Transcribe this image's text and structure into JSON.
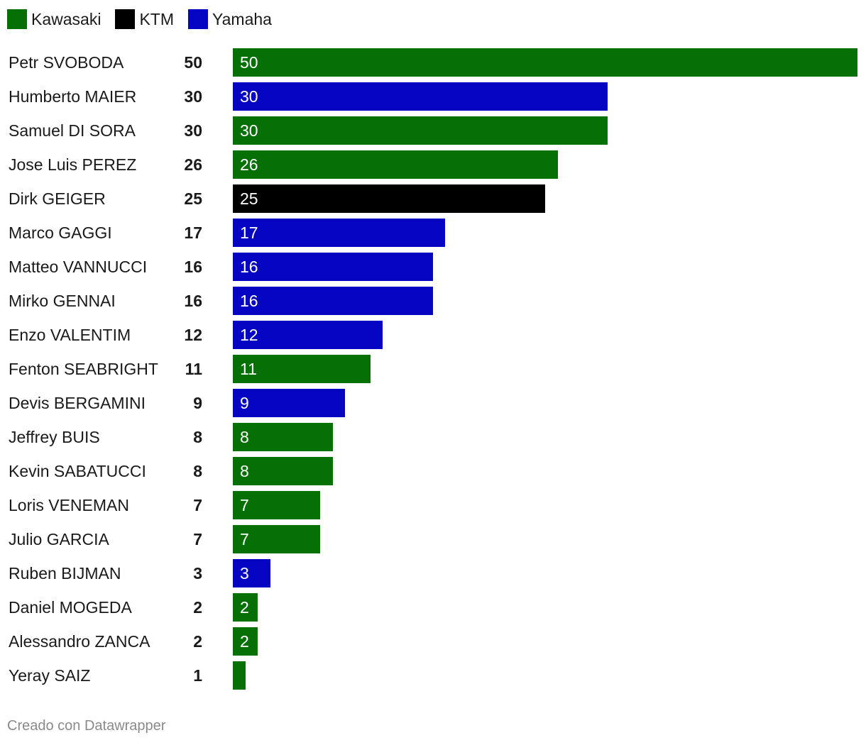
{
  "chart_data": {
    "type": "bar",
    "orientation": "horizontal",
    "legend": [
      {
        "name": "Kawasaki",
        "color": "#067006"
      },
      {
        "name": "KTM",
        "color": "#000000"
      },
      {
        "name": "Yamaha",
        "color": "#0505c3"
      }
    ],
    "xlim": [
      0,
      50
    ],
    "rows": [
      {
        "name": "Petr SVOBODA",
        "value": 50,
        "brand": "Kawasaki",
        "show_label": true
      },
      {
        "name": "Humberto MAIER",
        "value": 30,
        "brand": "Yamaha",
        "show_label": true
      },
      {
        "name": "Samuel DI SORA",
        "value": 30,
        "brand": "Kawasaki",
        "show_label": true
      },
      {
        "name": "Jose Luis PEREZ",
        "value": 26,
        "brand": "Kawasaki",
        "show_label": true
      },
      {
        "name": "Dirk GEIGER",
        "value": 25,
        "brand": "KTM",
        "show_label": true
      },
      {
        "name": "Marco GAGGI",
        "value": 17,
        "brand": "Yamaha",
        "show_label": true
      },
      {
        "name": "Matteo VANNUCCI",
        "value": 16,
        "brand": "Yamaha",
        "show_label": true
      },
      {
        "name": "Mirko GENNAI",
        "value": 16,
        "brand": "Yamaha",
        "show_label": true
      },
      {
        "name": "Enzo VALENTIM",
        "value": 12,
        "brand": "Yamaha",
        "show_label": true
      },
      {
        "name": "Fenton SEABRIGHT",
        "value": 11,
        "brand": "Kawasaki",
        "show_label": true
      },
      {
        "name": "Devis BERGAMINI",
        "value": 9,
        "brand": "Yamaha",
        "show_label": true
      },
      {
        "name": "Jeffrey BUIS",
        "value": 8,
        "brand": "Kawasaki",
        "show_label": true
      },
      {
        "name": "Kevin SABATUCCI",
        "value": 8,
        "brand": "Kawasaki",
        "show_label": true
      },
      {
        "name": "Loris VENEMAN",
        "value": 7,
        "brand": "Kawasaki",
        "show_label": true
      },
      {
        "name": "Julio GARCIA",
        "value": 7,
        "brand": "Kawasaki",
        "show_label": true
      },
      {
        "name": "Ruben BIJMAN",
        "value": 3,
        "brand": "Yamaha",
        "show_label": true
      },
      {
        "name": "Daniel MOGEDA",
        "value": 2,
        "brand": "Kawasaki",
        "show_label": true
      },
      {
        "name": "Alessandro ZANCA",
        "value": 2,
        "brand": "Kawasaki",
        "show_label": true
      },
      {
        "name": "Yeray SAIZ",
        "value": 1,
        "brand": "Kawasaki",
        "show_label": false
      }
    ]
  },
  "credit": "Creado con Datawrapper"
}
